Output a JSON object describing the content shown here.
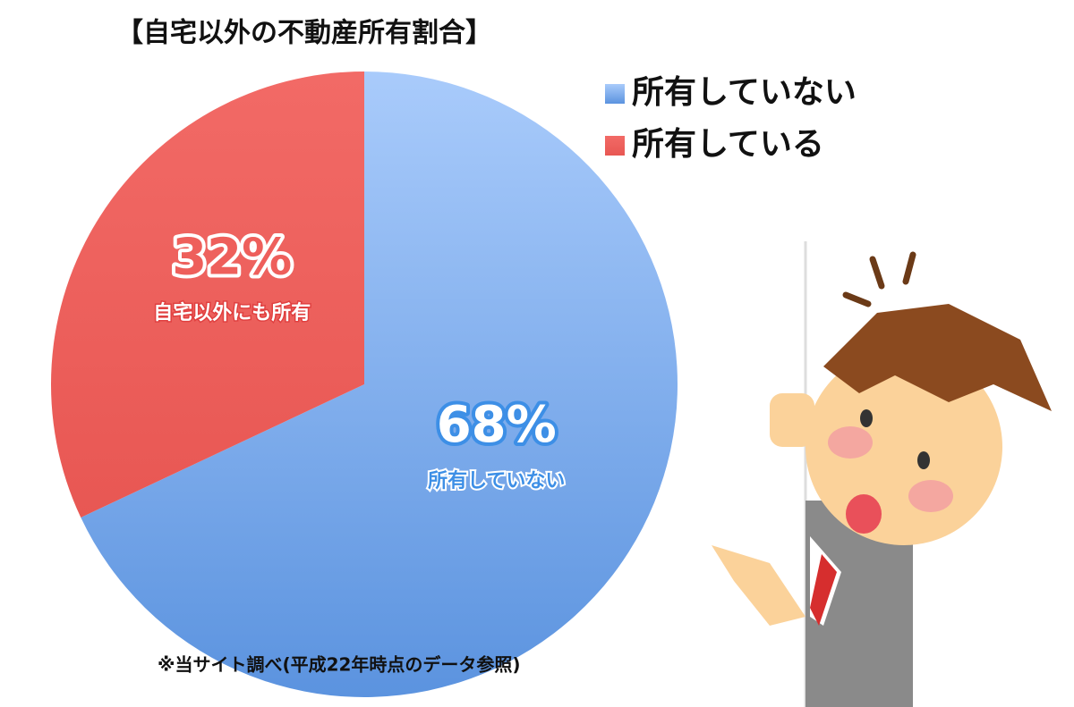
{
  "chart_data": {
    "type": "pie",
    "title": "【自宅以外の不動産所有割合】",
    "categories": [
      "所有していない",
      "所有している"
    ],
    "values": [
      68,
      32
    ],
    "value_labels": [
      "68%",
      "32%"
    ],
    "slice_notes": [
      "所有していない",
      "自宅以外にも所有"
    ],
    "colors": [
      "#6fa3ea",
      "#ee5f5b"
    ],
    "legend": "top-right",
    "footnote": "※当サイト調べ(平成22年時点のデータ参照)"
  }
}
